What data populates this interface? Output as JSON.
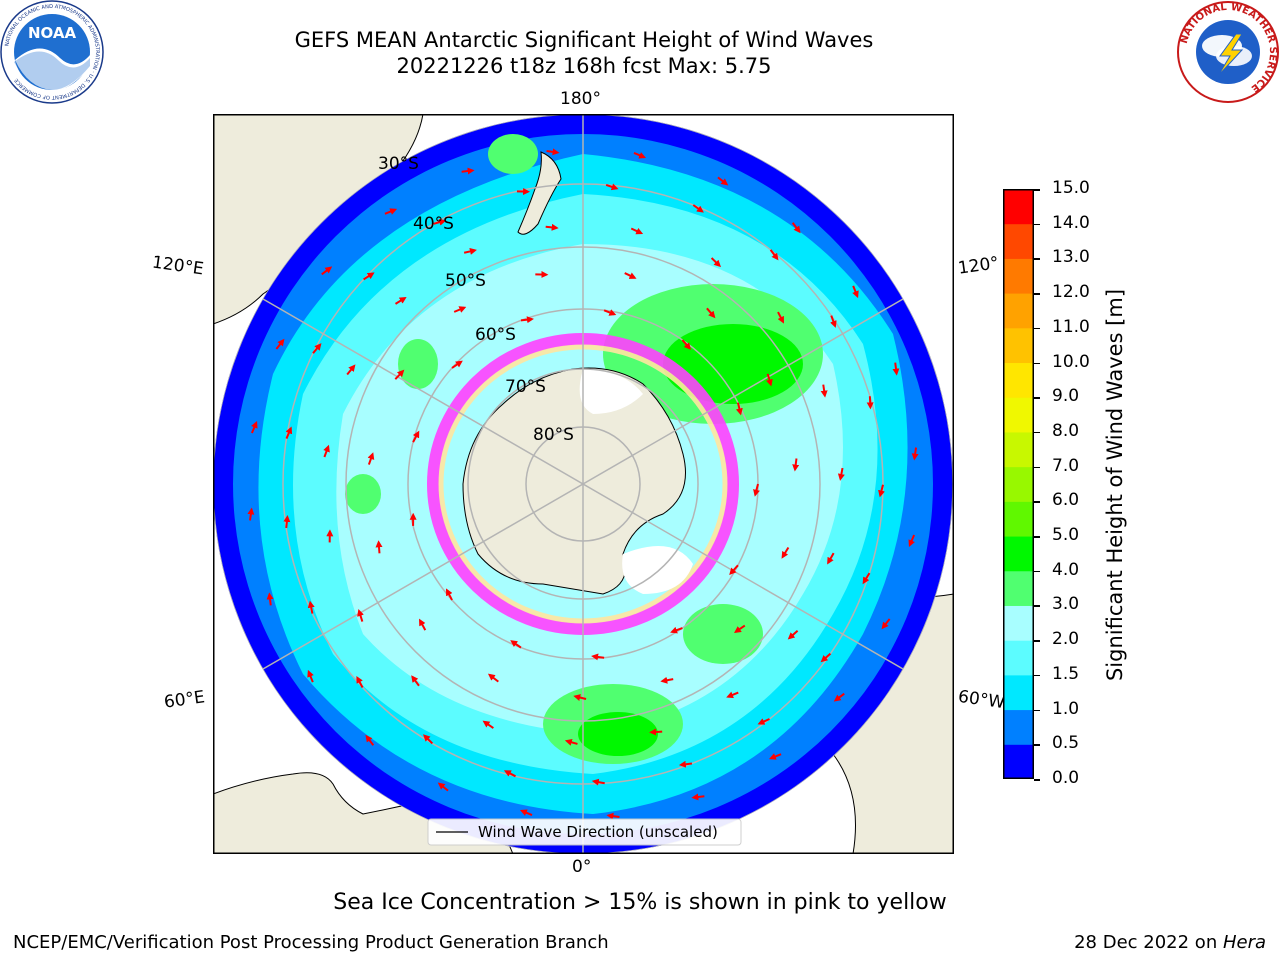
{
  "title": {
    "line1": "GEFS MEAN Antarctic Significant Height of Wind Waves",
    "line2": "20221226 t18z 168h fcst   Max: 5.75"
  },
  "logos": {
    "noaa_text": "NOAA",
    "noaa_ring": "NATIONAL OCEANIC AND ATMOSPHERIC ADMINISTRATION · U.S. DEPARTMENT OF COMMERCE",
    "nws_ring": "NATIONAL WEATHER SERVICE"
  },
  "map": {
    "projection": "south polar stereographic",
    "lon_labels": {
      "top": "180°",
      "bottom": "0°",
      "upper_left": "120°E",
      "upper_right": "120°",
      "lower_left": "60°E",
      "lower_right": "60°W"
    },
    "lat_labels": [
      "30°S",
      "40°S",
      "50°S",
      "60°S",
      "70°S",
      "80°S"
    ],
    "legend_label": "Wind Wave Direction (unscaled)",
    "colors": {
      "land": "#eeecdc",
      "ocean_0": "#0000ff",
      "ocean_05": "#0080ff",
      "ocean_1": "#00e8ff",
      "ocean_15": "#5cfcff",
      "ocean_2": "#a8feff",
      "ocean_3": "#50ff70",
      "ocean_4": "#00f800",
      "sea_ice": "#ff40ff",
      "arrow": "#ff0000",
      "grid": "#b4b4b4"
    }
  },
  "colorbar": {
    "label": "Significant Height of Wind Waves [m]",
    "ticks": [
      "0.0",
      "0.5",
      "1.0",
      "1.5",
      "2.0",
      "3.0",
      "4.0",
      "5.0",
      "6.0",
      "7.0",
      "8.0",
      "9.0",
      "10.0",
      "11.0",
      "12.0",
      "13.0",
      "14.0",
      "15.0"
    ],
    "colors": [
      "#0000ff",
      "#0080ff",
      "#00e8ff",
      "#5cfcff",
      "#a8feff",
      "#50ff70",
      "#00f800",
      "#60f800",
      "#98f800",
      "#c8f800",
      "#f0f800",
      "#ffe600",
      "#ffc200",
      "#ffa200",
      "#ff7a00",
      "#ff4800",
      "#ff0000"
    ]
  },
  "ice_note": "Sea Ice Concentration > 15% is shown in pink to yellow",
  "footer": {
    "left": "NCEP/EMC/Verification Post Processing Product Generation Branch",
    "right_prefix": "28 Dec 2022 on ",
    "right_italic": "Hera"
  }
}
